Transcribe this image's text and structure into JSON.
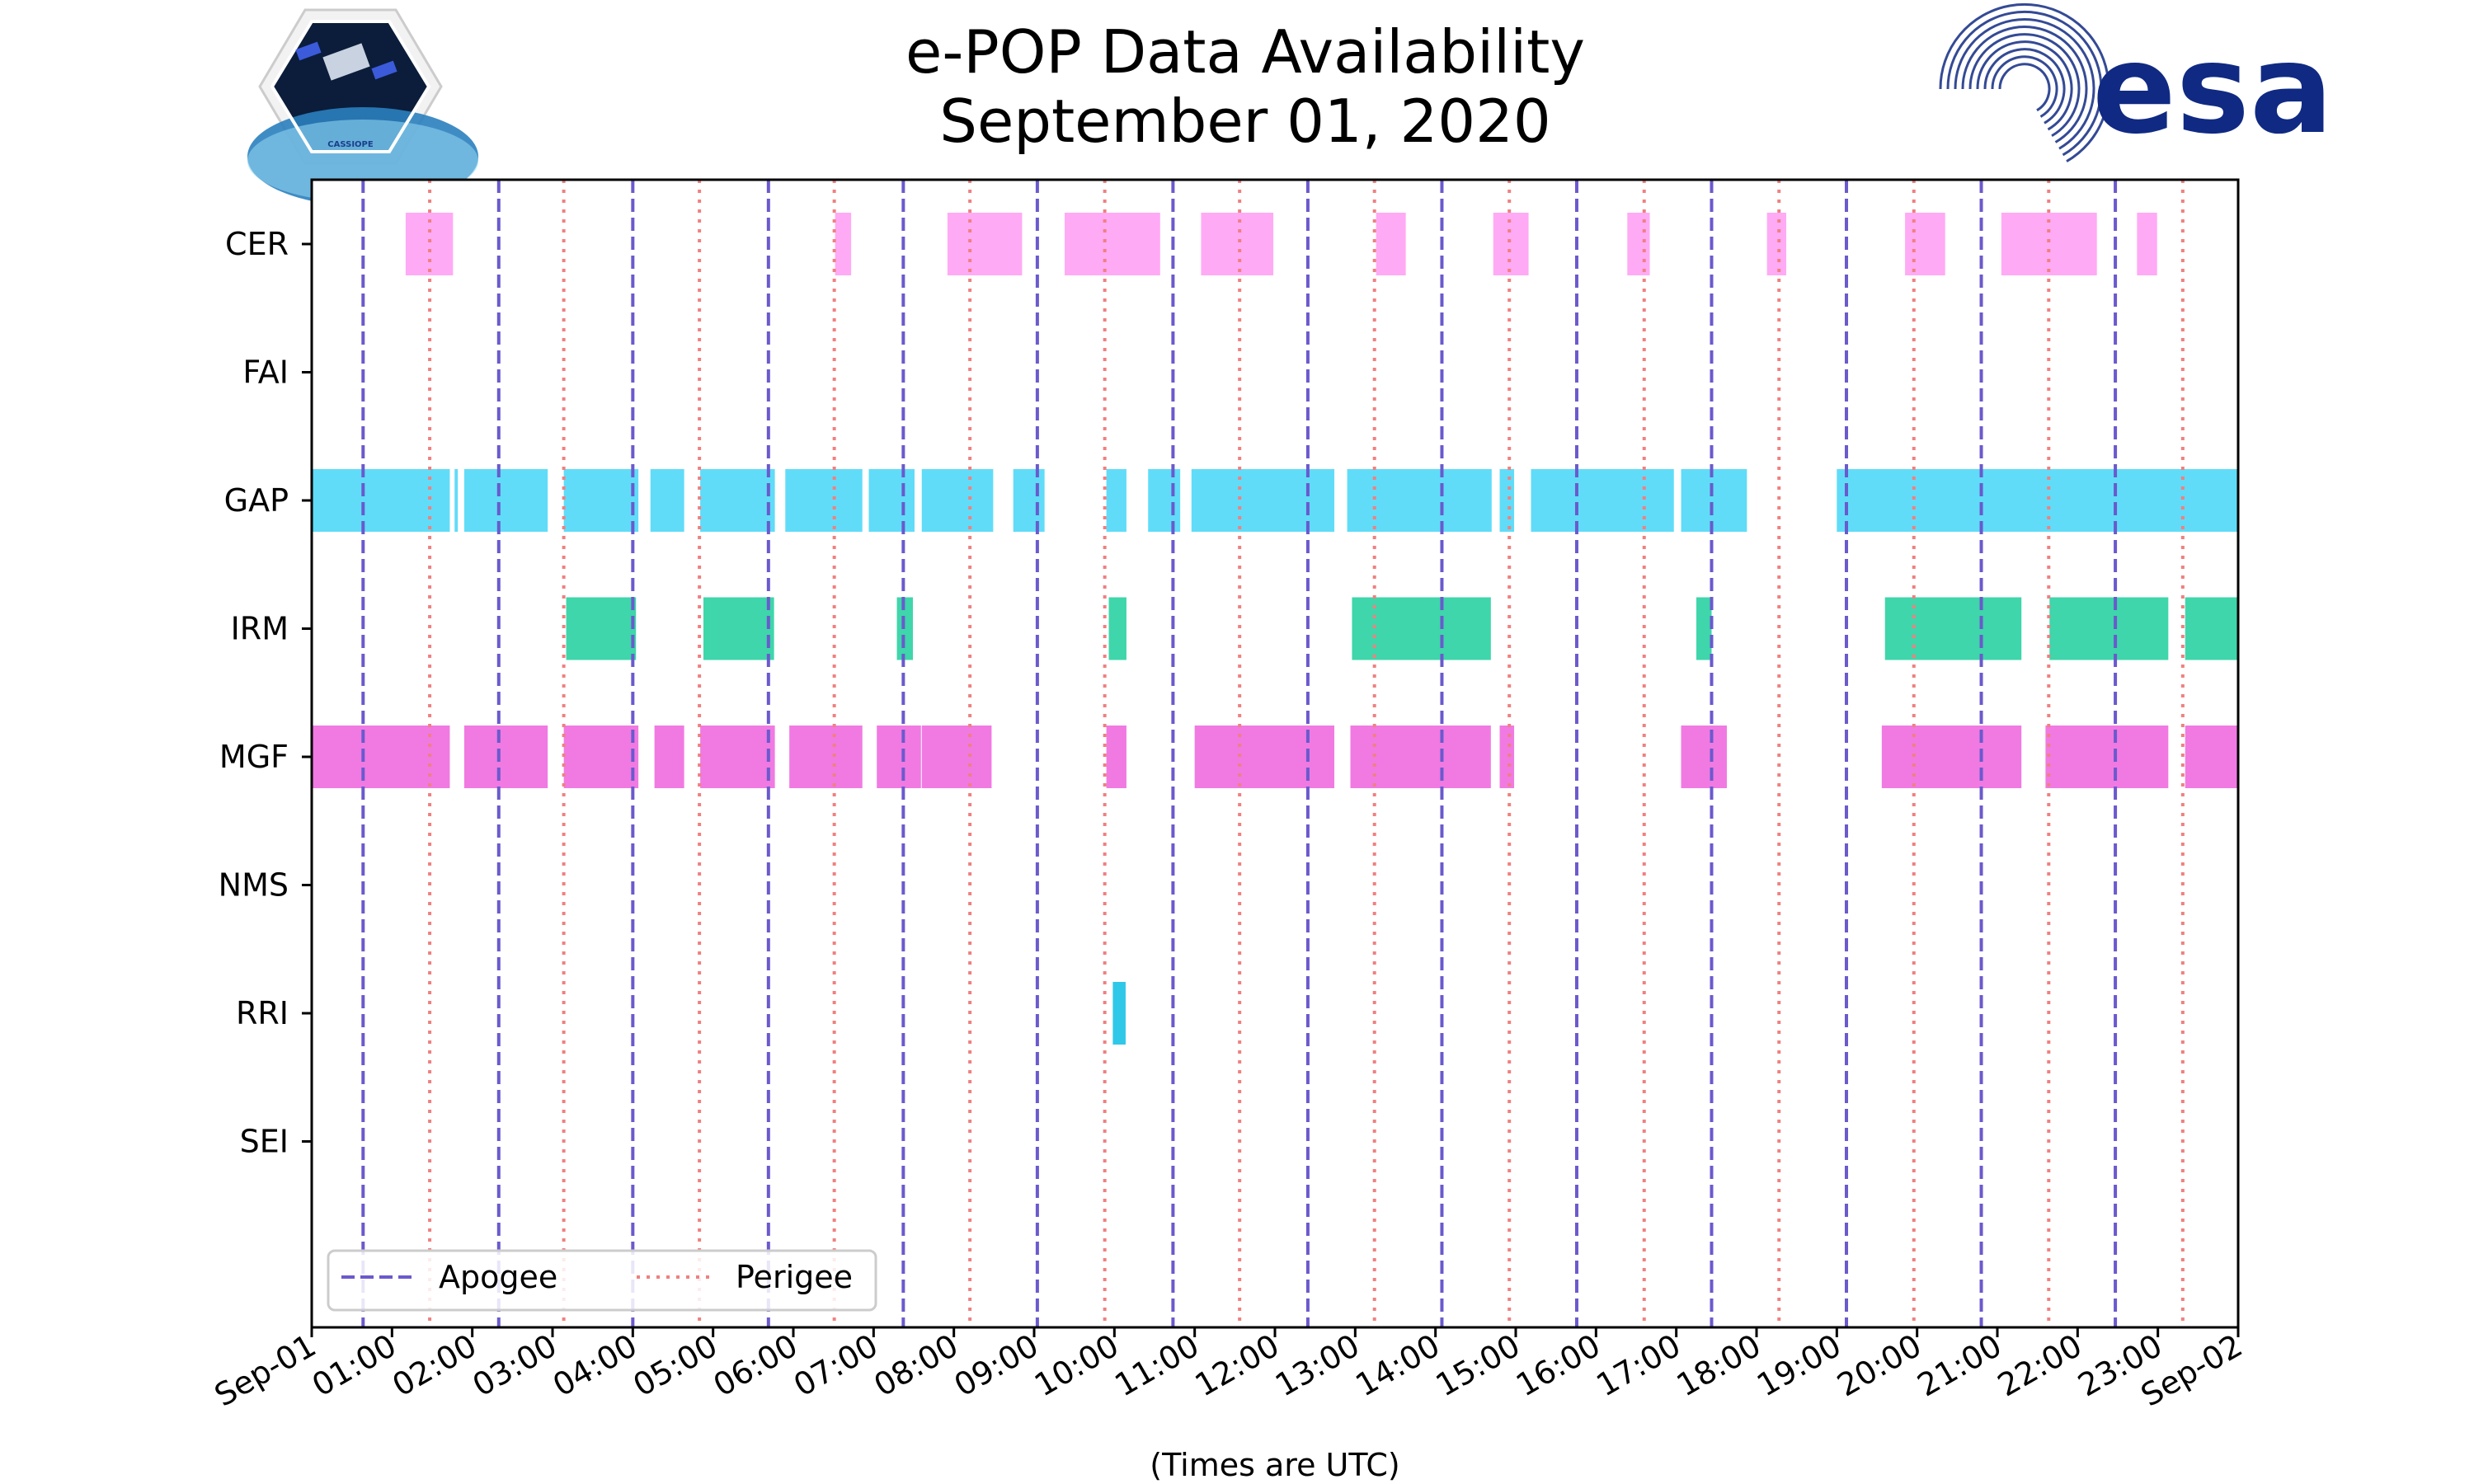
{
  "header": {
    "title_line1": "e-POP Data Availability",
    "title_line2": "September 01, 2020",
    "logo_left_text": "CASSIOPE",
    "logo_right_text": "esa"
  },
  "colors": {
    "apogee": "#6a5acd",
    "perigee": "#f08080",
    "CER": "#ffaaf5",
    "GAP": "#60dcf8",
    "IRM": "#3ed6aa",
    "MGF": "#f07ae2",
    "RRI": "#30c8e8",
    "esa_blue": "#102a83"
  },
  "chart_data": {
    "type": "timeline",
    "title": "e-POP Data Availability\nSeptember 01, 2020",
    "xlabel": "(Times are UTC)",
    "ylabel": "",
    "xlim_hours": [
      0,
      24
    ],
    "x_tick_labels": [
      "Sep-01",
      "01:00",
      "02:00",
      "03:00",
      "04:00",
      "05:00",
      "06:00",
      "07:00",
      "08:00",
      "09:00",
      "10:00",
      "11:00",
      "12:00",
      "13:00",
      "14:00",
      "15:00",
      "16:00",
      "17:00",
      "18:00",
      "19:00",
      "20:00",
      "21:00",
      "22:00",
      "23:00",
      "Sep-02"
    ],
    "instruments": [
      "CER",
      "FAI",
      "GAP",
      "IRM",
      "MGF",
      "NMS",
      "RRI",
      "SEI"
    ],
    "segments": {
      "CER": [
        [
          1.17,
          1.76
        ],
        [
          6.52,
          6.72
        ],
        [
          7.92,
          8.85
        ],
        [
          9.38,
          10.57
        ],
        [
          11.08,
          11.98
        ],
        [
          13.26,
          13.63
        ],
        [
          14.72,
          15.16
        ],
        [
          16.39,
          16.67
        ],
        [
          18.13,
          18.37
        ],
        [
          19.85,
          20.35
        ],
        [
          21.05,
          22.24
        ],
        [
          22.74,
          22.99
        ]
      ],
      "FAI": [],
      "GAP": [
        [
          0.0,
          1.72
        ],
        [
          1.78,
          1.82
        ],
        [
          1.9,
          2.94
        ],
        [
          3.14,
          4.07
        ],
        [
          4.22,
          4.64
        ],
        [
          4.84,
          5.77
        ],
        [
          5.9,
          6.86
        ],
        [
          6.94,
          7.51
        ],
        [
          7.6,
          8.49
        ],
        [
          8.74,
          9.13
        ],
        [
          9.9,
          10.15
        ],
        [
          10.42,
          10.82
        ],
        [
          10.96,
          12.74
        ],
        [
          12.9,
          14.7
        ],
        [
          14.8,
          14.98
        ],
        [
          15.19,
          16.97
        ],
        [
          17.06,
          17.88
        ],
        [
          19.0,
          24.0
        ]
      ],
      "IRM": [
        [
          3.17,
          4.04
        ],
        [
          4.88,
          5.76
        ],
        [
          7.29,
          7.49
        ],
        [
          9.93,
          10.15
        ],
        [
          12.96,
          14.69
        ],
        [
          17.25,
          17.44
        ],
        [
          19.6,
          21.3
        ],
        [
          21.65,
          23.13
        ],
        [
          23.34,
          24.0
        ]
      ],
      "MGF": [
        [
          0.0,
          1.72
        ],
        [
          1.9,
          2.94
        ],
        [
          3.14,
          4.07
        ],
        [
          4.27,
          4.64
        ],
        [
          4.84,
          5.77
        ],
        [
          5.95,
          6.86
        ],
        [
          7.04,
          7.59
        ],
        [
          7.6,
          8.47
        ],
        [
          9.9,
          10.15
        ],
        [
          11.0,
          12.74
        ],
        [
          12.94,
          14.69
        ],
        [
          14.8,
          14.98
        ],
        [
          17.06,
          17.63
        ],
        [
          19.56,
          21.3
        ],
        [
          21.6,
          23.13
        ],
        [
          23.34,
          24.0
        ]
      ],
      "NMS": [],
      "RRI": [
        [
          9.98,
          10.14
        ]
      ],
      "SEI": []
    },
    "apogee_hours": [
      0.64,
      2.33,
      4.0,
      5.69,
      7.37,
      9.04,
      10.73,
      12.41,
      14.08,
      15.76,
      17.44,
      19.12,
      20.8,
      22.47
    ],
    "perigee_hours": [
      1.47,
      3.14,
      4.83,
      6.51,
      8.2,
      9.88,
      11.56,
      13.24,
      14.92,
      16.6,
      18.28,
      19.96,
      21.64,
      23.31
    ],
    "legend": {
      "position": "lower-left",
      "entries": [
        {
          "label": "Apogee",
          "style": "dashed"
        },
        {
          "label": "Perigee",
          "style": "dotted"
        }
      ]
    }
  }
}
